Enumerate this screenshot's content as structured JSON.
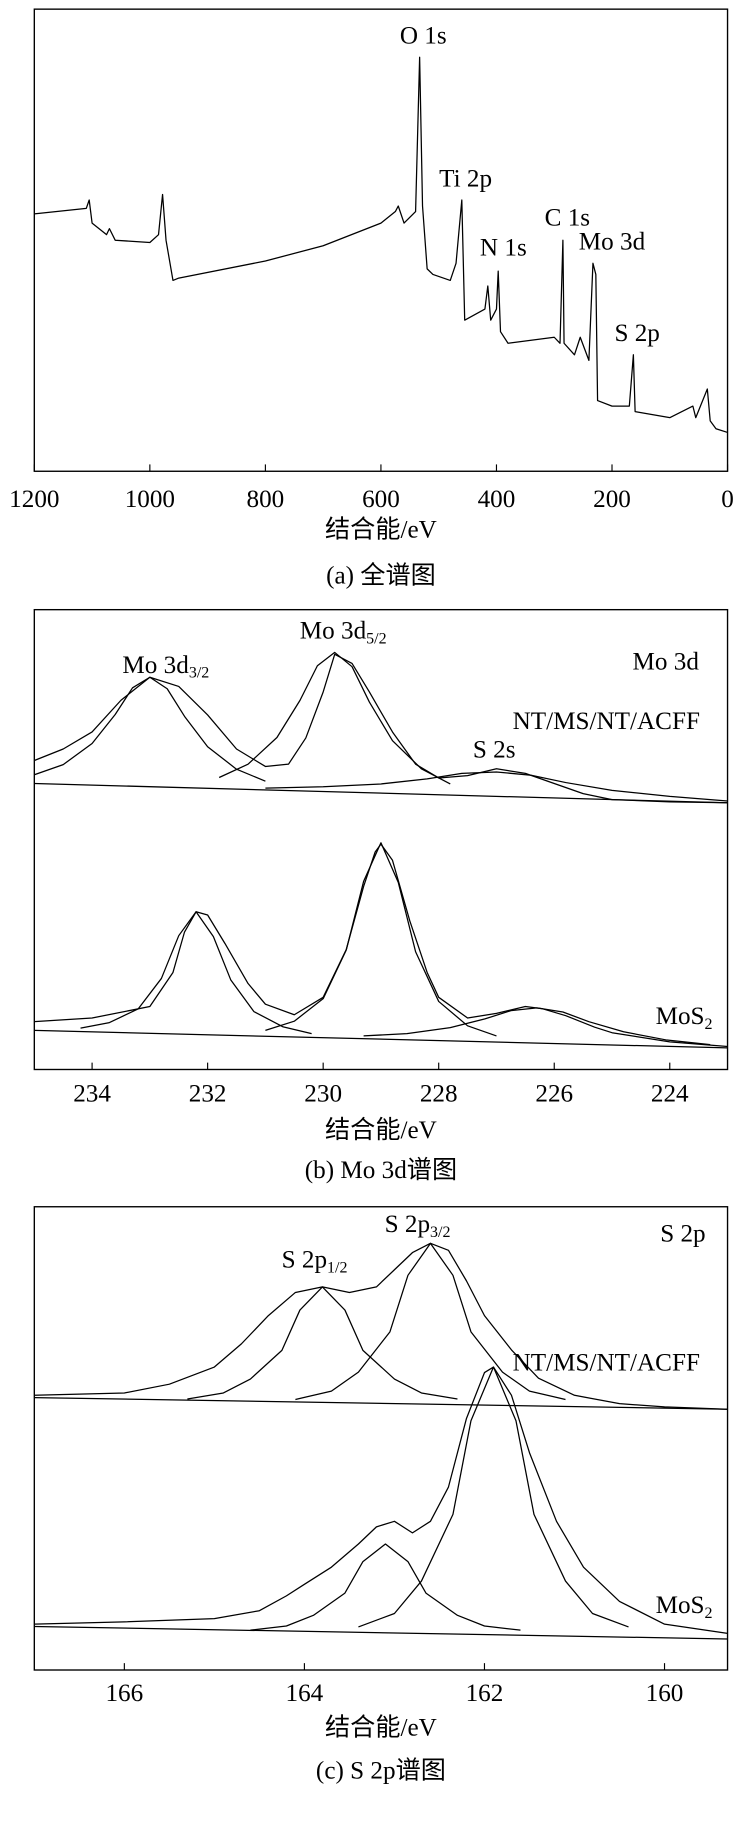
{
  "chart_data": [
    {
      "type": "line",
      "xlabel": "结合能/eV",
      "caption": "(a) 全谱图",
      "xlim": [
        1200,
        0
      ],
      "xticks": [
        1200,
        1000,
        800,
        600,
        400,
        200,
        0
      ],
      "ylim": [
        0,
        100
      ],
      "series": [
        {
          "color": "#000000",
          "x": [
            1200,
            1110,
            1105,
            1100,
            1075,
            1070,
            1060,
            1000,
            985,
            978,
            972,
            960,
            950,
            800,
            700,
            600,
            575,
            570,
            560,
            540,
            533,
            528,
            520,
            510,
            480,
            470,
            460,
            455,
            420,
            415,
            410,
            400,
            397,
            393,
            380,
            300,
            290,
            285,
            283,
            265,
            255,
            240,
            233,
            228,
            225,
            200,
            170,
            163,
            160,
            100,
            60,
            55,
            35,
            30,
            20,
            0
          ],
          "values": [
            55.7,
            56.9,
            58.7,
            53.7,
            51.2,
            52.5,
            50.0,
            49.5,
            51.2,
            59.9,
            50.0,
            41.3,
            41.8,
            45.5,
            48.8,
            53.7,
            56.2,
            57.4,
            53.7,
            56.2,
            89.6,
            57.4,
            43.8,
            42.6,
            41.3,
            45.0,
            58.7,
            32.7,
            35.1,
            40.1,
            32.7,
            35.1,
            43.3,
            30.2,
            27.7,
            29.0,
            27.7,
            50.0,
            27.7,
            25.2,
            29.0,
            24.0,
            45.0,
            42.6,
            15.3,
            14.1,
            14.1,
            25.2,
            12.9,
            11.6,
            14.1,
            11.6,
            17.8,
            10.9,
            9.2,
            8.4
          ]
        }
      ],
      "annotations": [
        {
          "text": "O 1s"
        },
        {
          "text": "Ti 2p"
        },
        {
          "text": "N 1s"
        },
        {
          "text": "C 1s"
        },
        {
          "text": "Mo 3d"
        },
        {
          "text": "S 2p"
        }
      ]
    },
    {
      "type": "line",
      "xlabel": "结合能/eV",
      "caption": "(b) Mo 3d谱图",
      "xlim": [
        235,
        223
      ],
      "xticks": [
        234,
        232,
        230,
        228,
        226,
        224
      ],
      "ylim": [
        0,
        100
      ],
      "series": [
        {
          "color": "#000000",
          "x": [
            235,
            234.5,
            234,
            233.5,
            233,
            232.5,
            232,
            231.5,
            231,
            230.6,
            230.3,
            230,
            229.8,
            229.5,
            229.2,
            228.8,
            228.4,
            228,
            227.5,
            227,
            226.5,
            226,
            225.5,
            225,
            224,
            223
          ],
          "values": [
            67.2,
            69.7,
            73.4,
            80.3,
            85.3,
            83.3,
            77.1,
            69.7,
            65.9,
            66.4,
            72.1,
            82.1,
            90.3,
            88.3,
            82.1,
            73.4,
            66.4,
            63.4,
            63.9,
            65.4,
            64.4,
            62.2,
            60.0,
            58.7,
            58.2,
            58.0
          ]
        },
        {
          "color": "#000000",
          "x": [
            235,
            223
          ],
          "values": [
            62.2,
            58.0
          ]
        },
        {
          "color": "#000000",
          "x": [
            231,
            231.5,
            232,
            232.4,
            232.7,
            233,
            233.3,
            233.6,
            234,
            234.5,
            235
          ],
          "values": [
            62.7,
            65.3,
            70.2,
            76.8,
            82.8,
            85.3,
            83.0,
            77.2,
            70.9,
            66.3,
            64.1
          ]
        },
        {
          "color": "#000000",
          "x": [
            227.8,
            228.3,
            228.8,
            229.2,
            229.5,
            229.8,
            230.1,
            230.4,
            230.8,
            231.3,
            231.8
          ],
          "values": [
            62.1,
            65.4,
            71.5,
            79.9,
            87.6,
            90.7,
            87.8,
            80.3,
            72.2,
            66.4,
            63.5
          ]
        },
        {
          "color": "#000000",
          "x": [
            223,
            224,
            225,
            225.8,
            226.4,
            227,
            227.6,
            228.2,
            229,
            230,
            231
          ],
          "values": [
            58.4,
            59.4,
            60.7,
            62.4,
            64.0,
            64.7,
            64.4,
            63.2,
            62.1,
            61.5,
            61.2
          ]
        },
        {
          "color": "#000000",
          "x": [
            235,
            234,
            233,
            232.6,
            232.4,
            232.2,
            232,
            231.7,
            231.3,
            231,
            230.5,
            230,
            229.6,
            229.3,
            229.1,
            229,
            228.8,
            228.5,
            228.2,
            228,
            227.5,
            227,
            226.5,
            226.2,
            225.8,
            225.3,
            225,
            224,
            223
          ],
          "values": [
            10.4,
            11.2,
            13.7,
            21.1,
            29.9,
            34.3,
            33.6,
            27.4,
            18.7,
            14.2,
            11.9,
            15.7,
            26.1,
            39.8,
            47.3,
            49.0,
            45.5,
            32.3,
            21.1,
            15.7,
            11.2,
            12.2,
            13.7,
            13.2,
            11.7,
            9.2,
            8.0,
            6.0,
            5.0
          ]
        },
        {
          "color": "#000000",
          "x": [
            235,
            223
          ],
          "values": [
            8.5,
            4.7
          ]
        },
        {
          "color": "#000000",
          "x": [
            230.2,
            230.7,
            231.2,
            231.6,
            231.9,
            232.2,
            232.5,
            232.8,
            233.2,
            233.7,
            234.2
          ],
          "values": [
            7.8,
            9.3,
            12.6,
            19.5,
            28.9,
            34.3,
            29.1,
            19.8,
            13.2,
            10.2,
            9.0
          ]
        },
        {
          "color": "#000000",
          "x": [
            227,
            227.5,
            228,
            228.4,
            228.7,
            229,
            229.3,
            229.6,
            230,
            230.5,
            231
          ],
          "values": [
            7.3,
            9.5,
            14.8,
            25.6,
            40.7,
            49.3,
            40.9,
            26.0,
            15.4,
            10.5,
            8.5
          ]
        },
        {
          "color": "#000000",
          "x": [
            223.3,
            224.05,
            224.8,
            225.4,
            225.85,
            226.3,
            226.75,
            227.2,
            227.8,
            228.55,
            229.3
          ],
          "values": [
            5.4,
            6.4,
            8.2,
            10.4,
            12.5,
            13.4,
            12.8,
            11.0,
            9.1,
            7.8,
            7.3
          ]
        }
      ],
      "annotations": [
        {
          "text": "Mo 3d"
        },
        {
          "text": "NT/MS/NT/ACFF"
        },
        {
          "text": "S 2s"
        },
        {
          "text": "Mo 3d",
          "sub": "3/2"
        },
        {
          "text": "Mo 3d",
          "sub": "5/2"
        },
        {
          "text": "MoS",
          "sub": "2"
        }
      ]
    },
    {
      "type": "line",
      "xlabel": "结合能/eV",
      "caption": "(c) S 2p谱图",
      "xlim": [
        167,
        159.3
      ],
      "xticks": [
        166,
        164,
        162,
        160
      ],
      "ylim": [
        0,
        100
      ],
      "series": [
        {
          "color": "#000000",
          "x": [
            167,
            166,
            165.5,
            165,
            164.7,
            164.4,
            164.1,
            163.8,
            163.5,
            163.2,
            163.0,
            162.8,
            162.6,
            162.4,
            162.2,
            162.0,
            161.7,
            161.4,
            161.0,
            160.5,
            160,
            159.3
          ],
          "values": [
            59.3,
            59.8,
            61.7,
            65.4,
            70.4,
            76.5,
            81.5,
            82.7,
            81.5,
            82.7,
            86.4,
            90.1,
            92.1,
            90.6,
            84.0,
            76.5,
            69.1,
            63.0,
            59.3,
            57.5,
            56.8,
            56.3
          ]
        },
        {
          "color": "#000000",
          "x": [
            167,
            159.3
          ],
          "values": [
            58.8,
            56.3
          ]
        },
        {
          "color": "#000000",
          "x": [
            162.3,
            162.7,
            163.0,
            163.35,
            163.55,
            163.8,
            164.05,
            164.25,
            164.6,
            164.9,
            165.3
          ],
          "values": [
            58.5,
            59.8,
            62.8,
            69.0,
            77.7,
            82.7,
            77.7,
            69.0,
            62.8,
            59.8,
            58.5
          ]
        },
        {
          "color": "#000000",
          "x": [
            161.1,
            161.5,
            161.8,
            162.15,
            162.35,
            162.6,
            162.85,
            163.05,
            163.4,
            163.7,
            164.1
          ],
          "values": [
            58.4,
            60.2,
            64.3,
            73.0,
            85.2,
            92.1,
            85.2,
            73.0,
            64.3,
            60.2,
            58.4
          ]
        },
        {
          "color": "#000000",
          "x": [
            167,
            166,
            165,
            164.5,
            164.2,
            164,
            163.7,
            163.4,
            163.2,
            163.0,
            162.8,
            162.6,
            162.4,
            162.2,
            162.0,
            161.9,
            161.7,
            161.5,
            161.2,
            160.9,
            160.5,
            160,
            159.3
          ],
          "values": [
            9.9,
            10.4,
            11.1,
            12.8,
            16.0,
            18.5,
            22.2,
            27.2,
            30.9,
            32.1,
            29.6,
            32.1,
            39.5,
            54.3,
            64.2,
            65.4,
            59.3,
            46.9,
            32.1,
            22.2,
            14.8,
            9.9,
            7.9
          ]
        },
        {
          "color": "#000000",
          "x": [
            167,
            159.3
          ],
          "values": [
            9.4,
            6.7
          ]
        },
        {
          "color": "#000000",
          "x": [
            161.6,
            162.0,
            162.3,
            162.65,
            162.85,
            163.1,
            163.35,
            163.55,
            163.9,
            164.2,
            164.6
          ],
          "values": [
            8.6,
            9.5,
            11.8,
            16.6,
            23.4,
            27.2,
            23.4,
            16.6,
            11.8,
            9.5,
            8.6
          ]
        },
        {
          "color": "#000000",
          "x": [
            160.4,
            160.8,
            161.1,
            161.45,
            161.65,
            161.9,
            162.15,
            162.35,
            162.7,
            163.0,
            163.4
          ],
          "values": [
            9.3,
            12.2,
            19.2,
            33.6,
            53.8,
            65.4,
            53.8,
            33.6,
            19.2,
            12.2,
            9.3
          ]
        }
      ],
      "annotations": [
        {
          "text": "S 2p"
        },
        {
          "text": "NT/MS/NT/ACFF"
        },
        {
          "text": "S 2p",
          "sub": "1/2"
        },
        {
          "text": "S 2p",
          "sub": "3/2"
        },
        {
          "text": "MoS",
          "sub": "2"
        }
      ]
    }
  ]
}
